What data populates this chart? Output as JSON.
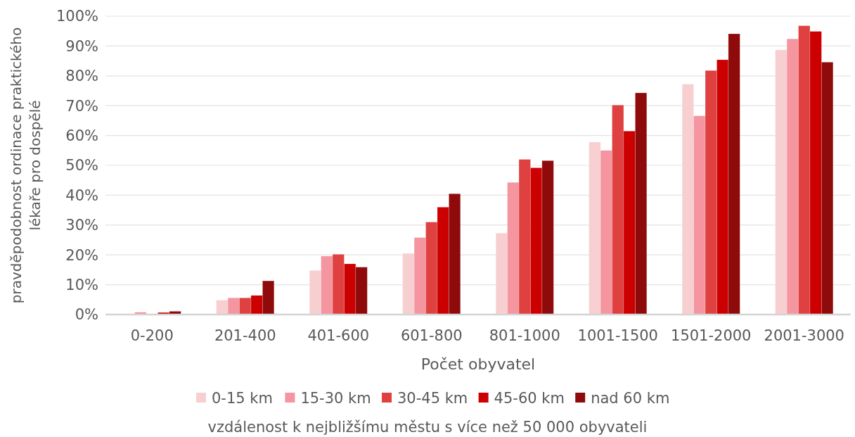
{
  "chart_data": {
    "type": "bar",
    "xlabel": "Počet obyvatel",
    "ylabel": "pravděpodobnost ordinace praktického lékaře pro dospělé",
    "legend_title": "vzdálenost k nejbližšímu městu s více než 50 000 obyvateli",
    "categories": [
      "0-200",
      "201-400",
      "401-600",
      "601-800",
      "801-1000",
      "1001-1500",
      "1501-2000",
      "2001-3000"
    ],
    "series": [
      {
        "name": "0-15 km",
        "color": "#f7cfd0",
        "values": [
          0,
          4.8,
          14.8,
          20.5,
          27.3,
          57.8,
          77.2,
          88.7
        ]
      },
      {
        "name": "15-30 km",
        "color": "#f495a0",
        "values": [
          0.8,
          5.6,
          19.6,
          25.8,
          44.3,
          55,
          66.6,
          92.4
        ]
      },
      {
        "name": "30-45 km",
        "color": "#df4040",
        "values": [
          0,
          5.6,
          20.2,
          31,
          52,
          70.2,
          81.8,
          96.8
        ]
      },
      {
        "name": "45-60 km",
        "color": "#cc0000",
        "values": [
          0.7,
          6.4,
          17,
          36,
          49.2,
          61.5,
          85.4,
          94.9
        ]
      },
      {
        "name": "nad 60 km",
        "color": "#8f0a0a",
        "values": [
          1.1,
          11.3,
          15.9,
          40.5,
          51.6,
          74.3,
          94.1,
          84.6
        ]
      }
    ],
    "ylim": [
      0,
      100
    ],
    "yticks": [
      {
        "value": 0,
        "label": "0%"
      },
      {
        "value": 10,
        "label": "10%"
      },
      {
        "value": 20,
        "label": "20%"
      },
      {
        "value": 30,
        "label": "30%"
      },
      {
        "value": 40,
        "label": "40%"
      },
      {
        "value": 50,
        "label": "50%"
      },
      {
        "value": 60,
        "label": "60%"
      },
      {
        "value": 70,
        "label": "70%"
      },
      {
        "value": 80,
        "label": "80%"
      },
      {
        "value": 90,
        "label": "90%"
      },
      {
        "value": 100,
        "label": "100%"
      }
    ],
    "grid": "y",
    "legend": "bottom"
  }
}
